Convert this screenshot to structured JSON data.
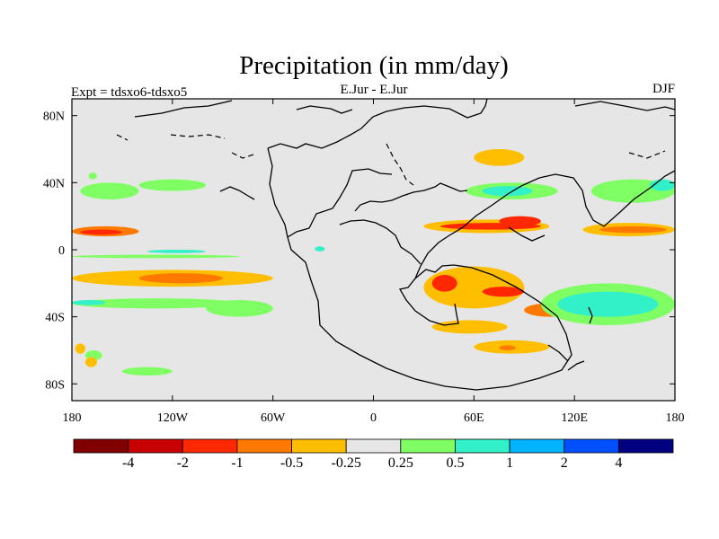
{
  "chart_data": {
    "type": "heatmap",
    "title": "Precipitation (in mm/day)",
    "subtitle_left": "Expt = tdsxo6-tdsxo5",
    "subtitle_center": "E.Jur - E.Jur",
    "subtitle_right": "DJF",
    "xlim": [
      -180,
      180
    ],
    "ylim": [
      -90,
      90
    ],
    "x_ticks": [
      {
        "value": -180,
        "label": "180"
      },
      {
        "value": -120,
        "label": "120W"
      },
      {
        "value": -60,
        "label": "60W"
      },
      {
        "value": 0,
        "label": "0"
      },
      {
        "value": 60,
        "label": "60E"
      },
      {
        "value": 120,
        "label": "120E"
      },
      {
        "value": 180,
        "label": "180"
      }
    ],
    "y_ticks": [
      {
        "value": 80,
        "label": "80N"
      },
      {
        "value": 40,
        "label": "40N"
      },
      {
        "value": 0,
        "label": "0"
      },
      {
        "value": -40,
        "label": "40S"
      },
      {
        "value": -80,
        "label": "80S"
      }
    ],
    "colorbar": {
      "colors": [
        "#800000",
        "#c80000",
        "#ff2800",
        "#ff7800",
        "#ffbe00",
        "#e6e6e6",
        "#80ff64",
        "#32f0c8",
        "#00b4ff",
        "#0050ff",
        "#000080"
      ],
      "labels": [
        "-4",
        "-2",
        "-1",
        "-0.5",
        "-0.25",
        "0.25",
        "0.5",
        "1",
        "2",
        "4"
      ]
    },
    "background_color": "#e6e6e6",
    "features": [
      {
        "value": 0.4,
        "lon": [
          -180,
          -80
        ],
        "lat": [
          -5,
          -3
        ]
      },
      {
        "value": 0.7,
        "lon": [
          -135,
          -100
        ],
        "lat": [
          -2,
          0
        ]
      },
      {
        "value": -0.6,
        "lon": [
          -180,
          -140
        ],
        "lat": [
          8,
          14
        ]
      },
      {
        "value": -1.2,
        "lon": [
          -175,
          -150
        ],
        "lat": [
          9,
          12
        ]
      },
      {
        "value": -0.3,
        "lon": [
          -180,
          -60
        ],
        "lat": [
          -22,
          -12
        ]
      },
      {
        "value": -0.6,
        "lon": [
          -140,
          -90
        ],
        "lat": [
          -20,
          -14
        ]
      },
      {
        "value": 0.4,
        "lon": [
          -180,
          -80
        ],
        "lat": [
          -35,
          -29
        ]
      },
      {
        "value": 0.7,
        "lon": [
          -180,
          -160
        ],
        "lat": [
          -33,
          -30
        ]
      },
      {
        "value": 0.35,
        "lon": [
          -175,
          -140
        ],
        "lat": [
          30,
          40
        ]
      },
      {
        "value": 0.35,
        "lon": [
          -140,
          -100
        ],
        "lat": [
          35,
          42
        ]
      },
      {
        "value": 0.35,
        "lon": [
          -100,
          -60
        ],
        "lat": [
          -40,
          -30
        ]
      },
      {
        "value": 0.4,
        "lon": [
          -170,
          -165
        ],
        "lat": [
          42,
          46
        ]
      },
      {
        "value": 0.4,
        "lon": [
          -172,
          -162
        ],
        "lat": [
          -66,
          -60
        ]
      },
      {
        "value": -0.3,
        "lon": [
          -172,
          -165
        ],
        "lat": [
          -70,
          -64
        ]
      },
      {
        "value": 0.7,
        "lon": [
          -35,
          -29
        ],
        "lat": [
          -1,
          2
        ]
      },
      {
        "value": -0.3,
        "lon": [
          30,
          105
        ],
        "lat": [
          10,
          18
        ]
      },
      {
        "value": -1.3,
        "lon": [
          40,
          100
        ],
        "lat": [
          12,
          16
        ]
      },
      {
        "value": -1.8,
        "lon": [
          75,
          100
        ],
        "lat": [
          14,
          20
        ]
      },
      {
        "value": -0.3,
        "lon": [
          125,
          180
        ],
        "lat": [
          8,
          16
        ]
      },
      {
        "value": -0.7,
        "lon": [
          135,
          175
        ],
        "lat": [
          10,
          14
        ]
      },
      {
        "value": -0.3,
        "lon": [
          30,
          90
        ],
        "lat": [
          -35,
          -10
        ]
      },
      {
        "value": -1.1,
        "lon": [
          35,
          50
        ],
        "lat": [
          -25,
          -15
        ]
      },
      {
        "value": -1.1,
        "lon": [
          65,
          90
        ],
        "lat": [
          -28,
          -22
        ]
      },
      {
        "value": -0.7,
        "lon": [
          90,
          120
        ],
        "lat": [
          -40,
          -32
        ]
      },
      {
        "value": -0.3,
        "lon": [
          35,
          80
        ],
        "lat": [
          -50,
          -42
        ]
      },
      {
        "value": -0.3,
        "lon": [
          60,
          105
        ],
        "lat": [
          -62,
          -54
        ]
      },
      {
        "value": -0.7,
        "lon": [
          75,
          85
        ],
        "lat": [
          -60,
          -57
        ]
      },
      {
        "value": 0.4,
        "lon": [
          100,
          180
        ],
        "lat": [
          -45,
          -20
        ]
      },
      {
        "value": 0.7,
        "lon": [
          110,
          170
        ],
        "lat": [
          -40,
          -25
        ]
      },
      {
        "value": 0.4,
        "lon": [
          55,
          110
        ],
        "lat": [
          30,
          40
        ]
      },
      {
        "value": 0.7,
        "lon": [
          65,
          95
        ],
        "lat": [
          32,
          38
        ]
      },
      {
        "value": 0.4,
        "lon": [
          130,
          180
        ],
        "lat": [
          28,
          42
        ]
      },
      {
        "value": 0.7,
        "lon": [
          165,
          180
        ],
        "lat": [
          35,
          42
        ]
      },
      {
        "value": -0.3,
        "lon": [
          60,
          90
        ],
        "lat": [
          50,
          60
        ]
      },
      {
        "value": 0.4,
        "lon": [
          -150,
          -120
        ],
        "lat": [
          -75,
          -70
        ]
      },
      {
        "value": -0.3,
        "lon": [
          -178,
          -172
        ],
        "lat": [
          -62,
          -56
        ]
      }
    ]
  }
}
